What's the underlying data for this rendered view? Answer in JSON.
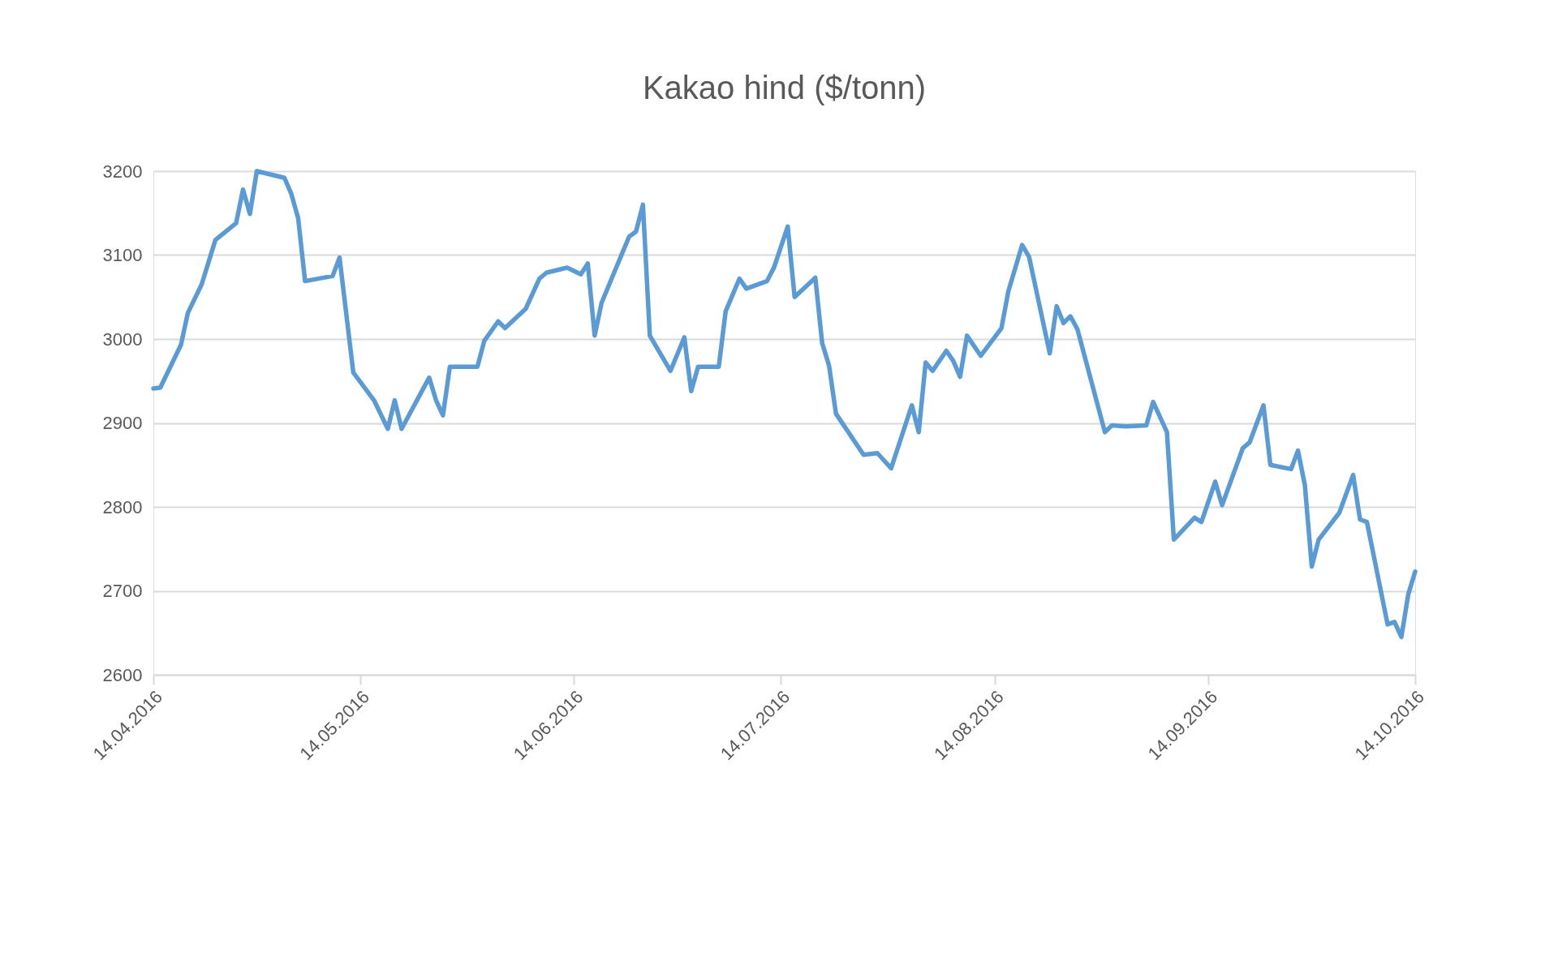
{
  "chart_data": {
    "type": "line",
    "title": "Kakao hind ($/tonn)",
    "x": [
      "2016-04-14",
      "2016-04-15",
      "2016-04-18",
      "2016-04-19",
      "2016-04-21",
      "2016-04-23",
      "2016-04-26",
      "2016-04-27",
      "2016-04-28",
      "2016-04-29",
      "2016-05-03",
      "2016-05-04",
      "2016-05-05",
      "2016-05-06",
      "2016-05-10",
      "2016-05-11",
      "2016-05-13",
      "2016-05-16",
      "2016-05-18",
      "2016-05-19",
      "2016-05-20",
      "2016-05-24",
      "2016-05-25",
      "2016-05-26",
      "2016-05-27",
      "2016-05-31",
      "2016-06-01",
      "2016-06-03",
      "2016-06-04",
      "2016-06-07",
      "2016-06-09",
      "2016-06-10",
      "2016-06-13",
      "2016-06-15",
      "2016-06-16",
      "2016-06-17",
      "2016-06-18",
      "2016-06-22",
      "2016-06-23",
      "2016-06-24",
      "2016-06-25",
      "2016-06-28",
      "2016-06-30",
      "2016-07-01",
      "2016-07-02",
      "2016-07-05",
      "2016-07-06",
      "2016-07-08",
      "2016-07-09",
      "2016-07-12",
      "2016-07-13",
      "2016-07-15",
      "2016-07-16",
      "2016-07-19",
      "2016-07-20",
      "2016-07-21",
      "2016-07-22",
      "2016-07-26",
      "2016-07-28",
      "2016-07-30",
      "2016-08-02",
      "2016-08-03",
      "2016-08-04",
      "2016-08-05",
      "2016-08-07",
      "2016-08-08",
      "2016-08-09",
      "2016-08-10",
      "2016-08-12",
      "2016-08-15",
      "2016-08-16",
      "2016-08-18",
      "2016-08-19",
      "2016-08-22",
      "2016-08-23",
      "2016-08-24",
      "2016-08-25",
      "2016-08-26",
      "2016-08-30",
      "2016-08-31",
      "2016-09-02",
      "2016-09-05",
      "2016-09-06",
      "2016-09-08",
      "2016-09-09",
      "2016-09-12",
      "2016-09-13",
      "2016-09-15",
      "2016-09-16",
      "2016-09-19",
      "2016-09-20",
      "2016-09-22",
      "2016-09-23",
      "2016-09-26",
      "2016-09-27",
      "2016-09-28",
      "2016-09-29",
      "2016-09-30",
      "2016-10-03",
      "2016-10-05",
      "2016-10-06",
      "2016-10-07",
      "2016-10-10",
      "2016-10-11",
      "2016-10-12",
      "2016-10-13",
      "2016-10-14"
    ],
    "series": [
      {
        "color": "#5b9bd5",
        "values": [
          2941,
          2942,
          2993,
          3031,
          3065,
          3118,
          3138,
          3178,
          3149,
          3200,
          3192,
          3173,
          3144,
          3069,
          3075,
          3097,
          2960,
          2927,
          2893,
          2927,
          2893,
          2954,
          2927,
          2909,
          2967,
          2967,
          2998,
          3021,
          3013,
          3036,
          3072,
          3079,
          3085,
          3077,
          3090,
          3004,
          3043,
          3122,
          3128,
          3160,
          3004,
          2962,
          3002,
          2938,
          2967,
          2967,
          3033,
          3072,
          3060,
          3069,
          3085,
          3134,
          3050,
          3073,
          2995,
          2968,
          2911,
          2862,
          2864,
          2846,
          2921,
          2889,
          2972,
          2962,
          2986,
          2974,
          2955,
          3004,
          2980,
          3013,
          3057,
          3112,
          3098,
          2983,
          3039,
          3019,
          3027,
          3012,
          2889,
          2897,
          2896,
          2897,
          2925,
          2889,
          2761,
          2787,
          2782,
          2830,
          2802,
          2870,
          2877,
          2921,
          2850,
          2845,
          2867,
          2826,
          2729,
          2761,
          2793,
          2838,
          2785,
          2782,
          2660,
          2663,
          2645,
          2696,
          2723
        ]
      }
    ],
    "xlim": [
      "2016-04-14",
      "2016-10-14"
    ],
    "xticks": [
      {
        "value": "2016-04-14",
        "label": "14.04.2016"
      },
      {
        "value": "2016-05-14",
        "label": "14.05.2016"
      },
      {
        "value": "2016-06-14",
        "label": "14.06.2016"
      },
      {
        "value": "2016-07-14",
        "label": "14.07.2016"
      },
      {
        "value": "2016-08-14",
        "label": "14.08.2016"
      },
      {
        "value": "2016-09-14",
        "label": "14.09.2016"
      },
      {
        "value": "2016-10-14",
        "label": "14.10.2016"
      }
    ],
    "ylim": [
      2600,
      3200
    ],
    "yticks": [
      2600,
      2700,
      2800,
      2900,
      3000,
      3100,
      3200
    ],
    "grid": "y",
    "marker": "none",
    "line_style": "solid"
  }
}
